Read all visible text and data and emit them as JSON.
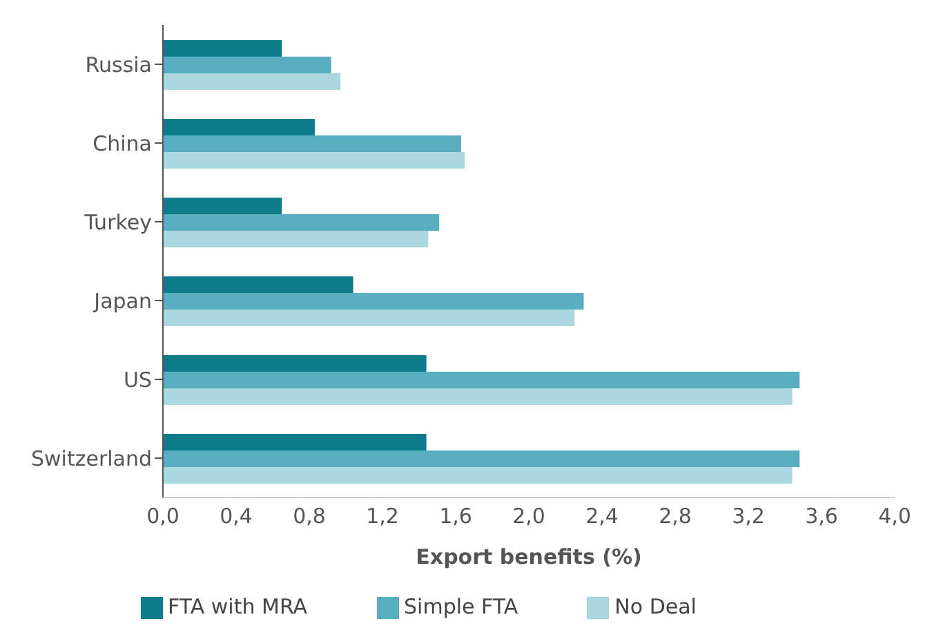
{
  "chart_data": {
    "type": "bar",
    "orientation": "horizontal",
    "xlabel": "Export benefits (%)",
    "categories": [
      "Russia",
      "China",
      "Turkey",
      "Japan",
      "US",
      "Switzerland"
    ],
    "series": [
      {
        "name": "FTA with MRA",
        "color": "#0e7c8b",
        "values": [
          0.65,
          0.83,
          0.65,
          1.04,
          1.44,
          1.44
        ]
      },
      {
        "name": "Simple FTA",
        "color": "#58adbf",
        "values": [
          0.92,
          1.63,
          1.51,
          2.3,
          3.48,
          3.48
        ]
      },
      {
        "name": "No Deal",
        "color": "#abd7e1",
        "values": [
          0.97,
          1.65,
          1.45,
          2.25,
          3.44,
          3.44
        ]
      }
    ],
    "xlim": [
      0,
      4
    ],
    "xticks": [
      {
        "value": 0,
        "label": "0,0"
      },
      {
        "value": 0.4,
        "label": "0,4"
      },
      {
        "value": 0.8,
        "label": "0,8"
      },
      {
        "value": 1.2,
        "label": "1,2"
      },
      {
        "value": 1.6,
        "label": "1,6"
      },
      {
        "value": 2,
        "label": "2,0"
      },
      {
        "value": 2.4,
        "label": "2,4"
      },
      {
        "value": 2.8,
        "label": "2,8"
      },
      {
        "value": 3.2,
        "label": "3,2"
      },
      {
        "value": 3.6,
        "label": "3,6"
      },
      {
        "value": 4,
        "label": "4,0"
      }
    ],
    "grid": false,
    "legend": "bottom"
  }
}
